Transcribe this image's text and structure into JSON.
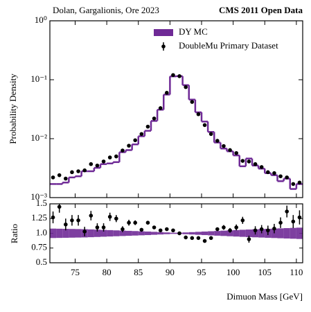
{
  "chart_data": {
    "type": "histogram",
    "note_left": "Dolan, Gargalionis, Ore 2023",
    "title": "CMS 2011 Open Data",
    "ylabel": "Probability Density",
    "xlabel": "Dimuon Mass [GeV]",
    "bins": [
      71,
      72,
      73,
      74,
      75,
      76,
      77,
      78,
      79,
      80,
      81,
      82,
      83,
      84,
      85,
      86,
      87,
      88,
      89,
      90,
      91,
      92,
      93,
      94,
      95,
      96,
      97,
      98,
      99,
      100,
      101,
      102,
      103,
      104,
      105,
      106,
      107,
      108,
      109,
      110,
      111
    ],
    "xlim": [
      71,
      111
    ],
    "xticks": [
      75,
      80,
      85,
      90,
      95,
      100,
      105,
      110
    ],
    "ylim": [
      0.001,
      1
    ],
    "log_y": true,
    "yticks": [
      {
        "value": 0.001,
        "label": "10⁻³"
      },
      {
        "value": 0.01,
        "label": "10⁻²"
      },
      {
        "value": 0.1,
        "label": "10⁻¹"
      },
      {
        "value": 1,
        "label": "10⁰"
      }
    ],
    "legend": "top-center",
    "series": [
      {
        "name": "DY MC",
        "color": "#6f2a96",
        "style": "step",
        "values": [
          0.0017,
          0.0017,
          0.0018,
          0.0022,
          0.0023,
          0.0028,
          0.0028,
          0.0032,
          0.0037,
          0.0038,
          0.004,
          0.0059,
          0.0064,
          0.008,
          0.011,
          0.0136,
          0.02,
          0.031,
          0.056,
          0.114,
          0.115,
          0.081,
          0.046,
          0.028,
          0.0195,
          0.013,
          0.0086,
          0.0068,
          0.0061,
          0.0052,
          0.0034,
          0.0046,
          0.0035,
          0.0031,
          0.0026,
          0.0024,
          0.0019,
          0.0021,
          0.0014,
          0.0017
        ]
      },
      {
        "name": "DoubleMu Primary Dataset",
        "color": "#000000",
        "style": "points",
        "values": [
          0.0022,
          0.0024,
          0.0021,
          0.0027,
          0.0028,
          0.0029,
          0.0037,
          0.0035,
          0.0041,
          0.0048,
          0.005,
          0.0063,
          0.0076,
          0.0094,
          0.012,
          0.016,
          0.022,
          0.033,
          0.06,
          0.12,
          0.115,
          0.075,
          0.042,
          0.026,
          0.017,
          0.012,
          0.0092,
          0.0075,
          0.0064,
          0.0057,
          0.0042,
          0.0041,
          0.0037,
          0.0033,
          0.0027,
          0.0026,
          0.0023,
          0.0022,
          0.0017,
          0.0018
        ]
      }
    ],
    "ratio": {
      "ylabel": "Ratio",
      "ylim": [
        0.5,
        1.5
      ],
      "yticks": [
        {
          "value": 0.5,
          "label": "0.5"
        },
        0.75,
        {
          "value": 1,
          "label": "1.0"
        },
        1.25,
        {
          "value": 1.5,
          "label": "1.5"
        }
      ],
      "values": [
        1.27,
        1.45,
        1.15,
        1.22,
        1.22,
        1.03,
        1.3,
        1.1,
        1.1,
        1.28,
        1.25,
        1.07,
        1.18,
        1.18,
        1.06,
        1.18,
        1.1,
        1.05,
        1.07,
        1.05,
        1.0,
        0.93,
        0.92,
        0.92,
        0.87,
        0.92,
        1.07,
        1.1,
        1.05,
        1.1,
        1.22,
        0.9,
        1.05,
        1.07,
        1.05,
        1.08,
        1.18,
        1.37,
        1.2,
        1.27
      ],
      "errors": [
        0.1,
        0.1,
        0.1,
        0.09,
        0.09,
        0.08,
        0.08,
        0.07,
        0.07,
        0.07,
        0.06,
        0.05,
        0.05,
        0.04,
        0.03,
        0.03,
        0.02,
        0.02,
        0.01,
        0.01,
        0.01,
        0.01,
        0.01,
        0.02,
        0.02,
        0.02,
        0.03,
        0.04,
        0.04,
        0.05,
        0.06,
        0.06,
        0.07,
        0.07,
        0.08,
        0.08,
        0.09,
        0.1,
        0.11,
        0.12
      ],
      "band": [
        0.08,
        0.078,
        0.076,
        0.074,
        0.072,
        0.07,
        0.066,
        0.062,
        0.058,
        0.054,
        0.05,
        0.046,
        0.042,
        0.038,
        0.034,
        0.03,
        0.025,
        0.02,
        0.015,
        0.01,
        0.01,
        0.015,
        0.02,
        0.025,
        0.03,
        0.035,
        0.04,
        0.045,
        0.05,
        0.055,
        0.06,
        0.064,
        0.068,
        0.072,
        0.076,
        0.08,
        0.084,
        0.088,
        0.092,
        0.096
      ]
    }
  }
}
